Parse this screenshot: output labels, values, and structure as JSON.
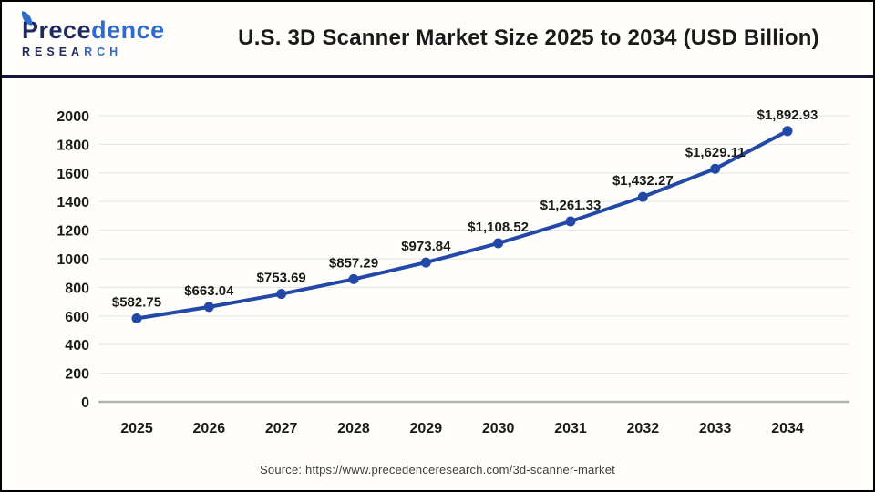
{
  "header": {
    "logo": {
      "name_dark": "Prece",
      "name_light": "dence",
      "research_dark": "RESEA",
      "research_light": "RCH"
    },
    "title": "U.S. 3D Scanner Market Size 2025 to 2034 (USD Billion)"
  },
  "chart_data": {
    "type": "line",
    "title": "U.S. 3D Scanner Market Size 2025 to 2034 (USD Billion)",
    "categories": [
      "2025",
      "2026",
      "2027",
      "2028",
      "2029",
      "2030",
      "2031",
      "2032",
      "2033",
      "2034"
    ],
    "values": [
      582.75,
      663.04,
      753.69,
      857.29,
      973.84,
      1108.52,
      1261.33,
      1432.27,
      1629.11,
      1892.93
    ],
    "point_labels": [
      "$582.75",
      "$663.04",
      "$753.69",
      "$857.29",
      "$973.84",
      "$1,108.52",
      "$1,261.33",
      "$1,432.27",
      "$1,629.11",
      "$1,892.93"
    ],
    "xlabel": "",
    "ylabel": "",
    "ylim": [
      0,
      2000
    ],
    "ytick_step": 200,
    "grid": true,
    "legend": "none",
    "line_color": "#2349a8",
    "marker": "circle",
    "unit": "USD Billion"
  },
  "footer": {
    "source": "Source: https://www.precedenceresearch.com/3d-scanner-market"
  },
  "colors": {
    "line": "#2349a8",
    "grid": "#e7e7e7",
    "axis": "#b3b3b3",
    "divider": "#11173a",
    "logo_dark": "#1e2a5e",
    "logo_light": "#2e6bcb",
    "text": "#1a1a1a"
  }
}
